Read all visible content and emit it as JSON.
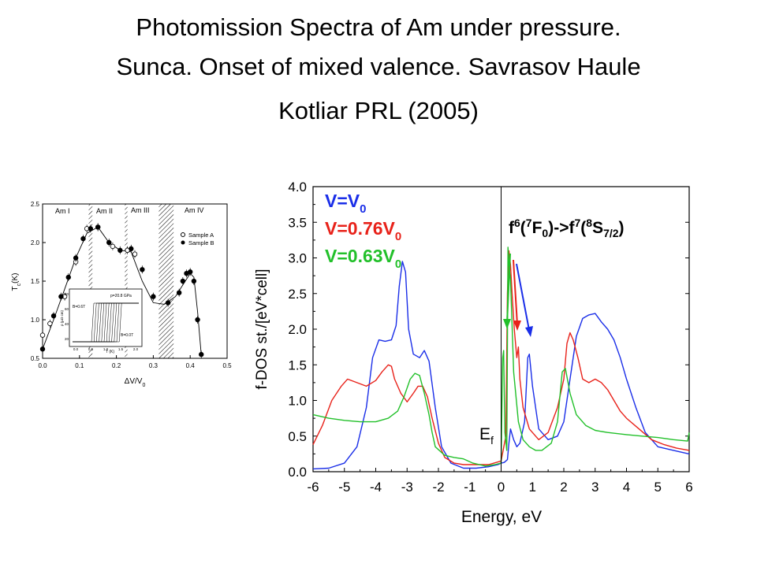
{
  "slide": {
    "title_line1": "Photomission Spectra of Am under pressure.",
    "title_line2": "Sunca. Onset of mixed valence. Savrasov Haule",
    "title_line3": "Kotliar PRL  (2005)"
  },
  "chart_data": [
    {
      "type": "line",
      "xlabel": "Energy, eV",
      "ylabel": "f-DOS st./[eV*cell]",
      "xlim": [
        -6,
        6
      ],
      "ylim": [
        0,
        4
      ],
      "xticks": [
        "-6",
        "-5",
        "-4",
        "-3",
        "-2",
        "-1",
        "0",
        "1",
        "2",
        "3",
        "4",
        "5",
        "6"
      ],
      "yticks": [
        "0.0",
        "0.5",
        "1.0",
        "1.5",
        "2.0",
        "2.5",
        "3.0",
        "3.5",
        "4.0"
      ],
      "fermi_label": "E",
      "fermi_sub": "f",
      "transition_label": "f6(7F0)->f7(8S7/2)",
      "legend": [
        {
          "main": "V=V",
          "sub": "0",
          "color": "#1a2ee8"
        },
        {
          "main": "V=0.76V",
          "sub": "0",
          "color": "#e8221a"
        },
        {
          "main": "V=0.63V",
          "sub": "0",
          "color": "#22c02a"
        }
      ],
      "series": [
        {
          "color": "#1a2ee8",
          "x": [
            -6,
            -5.5,
            -5,
            -4.6,
            -4.3,
            -4.1,
            -3.9,
            -3.7,
            -3.5,
            -3.35,
            -3.25,
            -3.15,
            -3.05,
            -2.95,
            -2.8,
            -2.6,
            -2.45,
            -2.3,
            -2.1,
            -1.9,
            -1.6,
            -1.2,
            -0.8,
            -0.4,
            -0.1,
            0,
            0.1,
            0.2,
            0.25,
            0.3,
            0.4,
            0.5,
            0.6,
            0.75,
            0.85,
            0.9,
            1.0,
            1.2,
            1.5,
            1.8,
            2.0,
            2.2,
            2.4,
            2.6,
            2.8,
            3.0,
            3.2,
            3.4,
            3.6,
            3.8,
            4.0,
            4.3,
            4.6,
            5.0,
            5.5,
            6.0
          ],
          "y": [
            0.04,
            0.05,
            0.12,
            0.35,
            0.9,
            1.6,
            1.85,
            1.83,
            1.85,
            2.05,
            2.6,
            2.95,
            2.8,
            2.0,
            1.65,
            1.6,
            1.7,
            1.55,
            0.9,
            0.35,
            0.12,
            0.05,
            0.05,
            0.07,
            0.1,
            0.12,
            0.13,
            0.17,
            0.4,
            0.6,
            0.45,
            0.35,
            0.4,
            0.7,
            1.6,
            1.65,
            1.2,
            0.6,
            0.45,
            0.5,
            0.7,
            1.3,
            1.9,
            2.15,
            2.2,
            2.22,
            2.1,
            2.0,
            1.85,
            1.6,
            1.3,
            0.9,
            0.55,
            0.35,
            0.3,
            0.25
          ]
        },
        {
          "color": "#e8221a",
          "x": [
            -6,
            -5.7,
            -5.4,
            -5.1,
            -4.9,
            -4.6,
            -4.3,
            -4.0,
            -3.8,
            -3.6,
            -3.5,
            -3.4,
            -3.2,
            -3.0,
            -2.8,
            -2.65,
            -2.5,
            -2.35,
            -2.2,
            -2.0,
            -1.8,
            -1.5,
            -1.2,
            -0.8,
            -0.4,
            0,
            0.15,
            0.2,
            0.25,
            0.3,
            0.35,
            0.42,
            0.5,
            0.55,
            0.6,
            0.7,
            0.9,
            1.2,
            1.5,
            1.8,
            2.0,
            2.1,
            2.2,
            2.3,
            2.45,
            2.6,
            2.8,
            3.0,
            3.2,
            3.4,
            3.6,
            3.8,
            4.0,
            4.4,
            4.8,
            5.2,
            5.6,
            6.0
          ],
          "y": [
            0.38,
            0.65,
            1.0,
            1.2,
            1.3,
            1.25,
            1.2,
            1.28,
            1.4,
            1.5,
            1.48,
            1.3,
            1.1,
            0.98,
            1.1,
            1.2,
            1.2,
            1.05,
            0.75,
            0.4,
            0.2,
            0.12,
            0.1,
            0.1,
            0.1,
            0.15,
            0.5,
            2.5,
            3.1,
            2.9,
            2.5,
            2.0,
            1.6,
            1.75,
            1.3,
            0.9,
            0.6,
            0.45,
            0.55,
            0.9,
            1.3,
            1.8,
            1.95,
            1.85,
            1.6,
            1.3,
            1.25,
            1.3,
            1.25,
            1.15,
            1.0,
            0.85,
            0.75,
            0.6,
            0.45,
            0.38,
            0.33,
            0.3
          ]
        },
        {
          "color": "#22c02a",
          "x": [
            -6,
            -5.5,
            -5,
            -4.5,
            -4.0,
            -3.6,
            -3.3,
            -3.1,
            -2.9,
            -2.75,
            -2.6,
            -2.45,
            -2.3,
            -2.2,
            -2.1,
            -1.8,
            -1.5,
            -1.2,
            -0.9,
            -0.5,
            -0.2,
            0,
            0.05,
            0.08,
            0.12,
            0.18,
            0.22,
            0.25,
            0.3,
            0.4,
            0.55,
            0.7,
            0.9,
            1.1,
            1.3,
            1.6,
            1.8,
            1.95,
            2.05,
            2.2,
            2.4,
            2.7,
            3.0,
            3.4,
            4.0,
            4.5,
            5.0,
            5.5,
            5.95,
            6.0
          ],
          "y": [
            0.8,
            0.75,
            0.72,
            0.7,
            0.7,
            0.75,
            0.85,
            1.05,
            1.3,
            1.38,
            1.35,
            1.1,
            0.8,
            0.55,
            0.35,
            0.23,
            0.2,
            0.18,
            0.12,
            0.08,
            0.1,
            0.12,
            1.6,
            1.7,
            0.55,
            0.3,
            3.15,
            2.9,
            2.7,
            1.4,
            0.7,
            0.45,
            0.35,
            0.3,
            0.3,
            0.4,
            0.7,
            1.4,
            1.45,
            1.1,
            0.8,
            0.65,
            0.58,
            0.55,
            0.52,
            0.5,
            0.48,
            0.45,
            0.43,
            0.55
          ]
        }
      ]
    },
    {
      "type": "scatter",
      "xlabel": "ΔV/V",
      "xlabel_sub": "0",
      "ylabel": "T",
      "ylabel_sub": "c",
      "ylabel_unit": "(K)",
      "xlim": [
        0,
        0.5
      ],
      "ylim": [
        0.5,
        2.5
      ],
      "xticks": [
        "0.0",
        "0.1",
        "0.2",
        "0.3",
        "0.4",
        "0.5"
      ],
      "yticks": [
        "0.5",
        "1.0",
        "1.5",
        "2.0",
        "2.5"
      ],
      "phases": [
        "Am I",
        "Am II",
        "Am III",
        "Am IV"
      ],
      "legend": [
        "Sample A",
        "Sample B"
      ],
      "series": [
        {
          "name": "Sample A",
          "x": [
            0.0,
            0.02,
            0.06,
            0.09,
            0.12,
            0.15,
            0.19,
            0.23,
            0.25
          ],
          "y": [
            0.8,
            0.95,
            1.3,
            1.75,
            2.18,
            2.2,
            1.95,
            1.9,
            1.85
          ]
        },
        {
          "name": "Sample B",
          "x": [
            0.0,
            0.03,
            0.05,
            0.07,
            0.09,
            0.11,
            0.13,
            0.15,
            0.18,
            0.21,
            0.24,
            0.27,
            0.3,
            0.34,
            0.37,
            0.38,
            0.39,
            0.4,
            0.41,
            0.42,
            0.43
          ],
          "y": [
            0.62,
            1.05,
            1.3,
            1.55,
            1.8,
            2.05,
            2.18,
            2.2,
            2.0,
            1.9,
            1.92,
            1.65,
            1.3,
            1.22,
            1.35,
            1.5,
            1.6,
            1.62,
            1.5,
            1.0,
            0.55
          ]
        }
      ],
      "curve": {
        "x": [
          0,
          0.03,
          0.06,
          0.09,
          0.12,
          0.15,
          0.18,
          0.21,
          0.24,
          0.27,
          0.3,
          0.33,
          0.36,
          0.38,
          0.4,
          0.41,
          0.42,
          0.43
        ],
        "y": [
          0.62,
          1.0,
          1.4,
          1.8,
          2.12,
          2.2,
          2.0,
          1.9,
          1.88,
          1.5,
          1.22,
          1.2,
          1.3,
          1.45,
          1.6,
          1.55,
          1.1,
          0.55
        ]
      },
      "inset": {
        "label_top": "p=20.8 GPa",
        "label_left": "B=0.6T",
        "label_right": "B=0.0T",
        "xlabel": "T (K)",
        "ylabel": "ρ (μΩ cm)",
        "xticks": [
          "0.0",
          "0.5",
          "1.0",
          "1.5",
          "2.0"
        ],
        "yticks": [
          "20",
          "40",
          "60",
          "80"
        ]
      }
    }
  ]
}
